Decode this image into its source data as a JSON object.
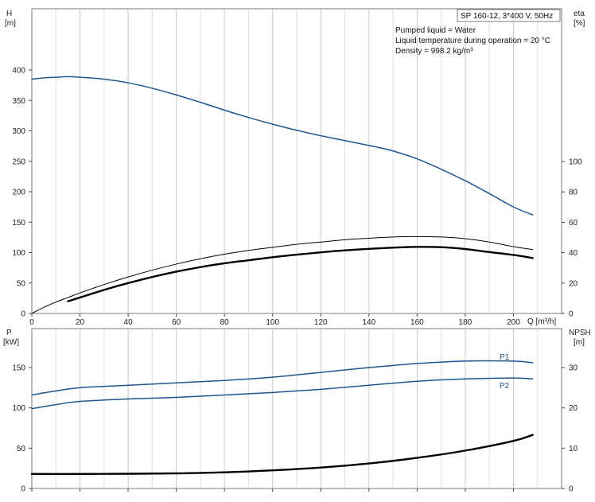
{
  "colors": {
    "blue_curve": "#1f5591",
    "black_curve": "#000000",
    "grid": "#c8c8c8",
    "frame": "#7a7a7a"
  },
  "chart_data": [
    {
      "type": "line",
      "panel": "head-efficiency",
      "title": "SP 160-12, 3*400 V, 50Hz",
      "annotations": [
        "Pumped liquid = Water",
        "Liquid temperature during operation = 20 °C",
        "Density = 998.2 kg/m³"
      ],
      "xlabel": "Q [m³/h]",
      "xlim": [
        0,
        220
      ],
      "xticks": [
        0,
        20,
        40,
        60,
        80,
        100,
        120,
        140,
        160,
        180,
        200
      ],
      "y_left": {
        "label_line1": "H",
        "label_line2": "[m]",
        "ylim": [
          0,
          400
        ],
        "ticks": [
          0,
          50,
          100,
          150,
          200,
          250,
          300,
          350,
          400
        ]
      },
      "y_right": {
        "label_line1": "eta",
        "label_line2": "[%]",
        "ylim": [
          0,
          100
        ],
        "ticks": [
          0,
          20,
          40,
          60,
          80,
          100
        ]
      },
      "grid": "vertical",
      "series": [
        {
          "id": "head",
          "axis": "left",
          "color": "blue",
          "x": [
            0,
            5,
            10,
            15,
            20,
            30,
            40,
            50,
            60,
            70,
            80,
            90,
            100,
            110,
            120,
            130,
            140,
            150,
            160,
            170,
            180,
            190,
            200,
            208
          ],
          "y": [
            385,
            387,
            388,
            389,
            388,
            385,
            379,
            370,
            359,
            347,
            334,
            322,
            311,
            301,
            292,
            284,
            276,
            267,
            254,
            237,
            218,
            197,
            175,
            162
          ]
        },
        {
          "id": "eta-thin",
          "axis": "right",
          "color": "black",
          "weight": "thin",
          "x": [
            0,
            5,
            10,
            15,
            20,
            30,
            40,
            50,
            60,
            70,
            80,
            90,
            100,
            110,
            120,
            130,
            140,
            150,
            160,
            170,
            180,
            190,
            200,
            208
          ],
          "y": [
            0,
            4,
            7.5,
            10.5,
            13.5,
            19,
            24,
            28.5,
            32.5,
            36,
            39,
            41.5,
            43.5,
            45.5,
            47,
            48.5,
            49.5,
            50.3,
            50.6,
            50.3,
            49.2,
            47,
            44,
            42
          ]
        },
        {
          "id": "eta-bold",
          "axis": "right",
          "color": "black",
          "weight": "bold",
          "x": [
            15,
            20,
            30,
            40,
            50,
            60,
            70,
            80,
            90,
            100,
            110,
            120,
            130,
            140,
            150,
            160,
            170,
            180,
            190,
            200,
            208
          ],
          "y": [
            8,
            10.5,
            15.5,
            20,
            24,
            27.5,
            30.5,
            33,
            35,
            37,
            38.7,
            40.2,
            41.5,
            42.5,
            43.3,
            43.8,
            43.6,
            42.4,
            40.4,
            38.5,
            36.5
          ]
        }
      ]
    },
    {
      "type": "line",
      "panel": "power-npsh",
      "xlim": [
        0,
        220
      ],
      "xticks": [
        0,
        20,
        40,
        60,
        80,
        100,
        120,
        140,
        160,
        180,
        200
      ],
      "y_left": {
        "label_line1": "P",
        "label_line2": "[kW]",
        "ylim": [
          0,
          150
        ],
        "ticks": [
          0,
          50,
          100,
          150
        ]
      },
      "y_right": {
        "label_line1": "NPSH",
        "label_line2": "[m]",
        "ylim": [
          0,
          30
        ],
        "ticks": [
          0,
          10,
          20,
          30
        ]
      },
      "grid": "vertical",
      "series": [
        {
          "id": "P1",
          "name": "P1",
          "axis": "left",
          "color": "blue",
          "x": [
            0,
            10,
            20,
            40,
            60,
            80,
            100,
            120,
            140,
            160,
            180,
            200,
            208
          ],
          "y": [
            116,
            121,
            125,
            128,
            131,
            134,
            138,
            144,
            150,
            155,
            158,
            158,
            156
          ]
        },
        {
          "id": "P2",
          "name": "P2",
          "axis": "left",
          "color": "blue",
          "x": [
            0,
            10,
            20,
            40,
            60,
            80,
            100,
            120,
            140,
            160,
            180,
            200,
            208
          ],
          "y": [
            99,
            104,
            108,
            111,
            113,
            116,
            119,
            123,
            128,
            133,
            136,
            137,
            136
          ]
        },
        {
          "id": "npsh",
          "axis": "right",
          "color": "black",
          "weight": "bold",
          "x": [
            0,
            20,
            40,
            60,
            80,
            100,
            120,
            140,
            160,
            180,
            200,
            208
          ],
          "y": [
            3.6,
            3.6,
            3.65,
            3.75,
            4.0,
            4.5,
            5.2,
            6.2,
            7.6,
            9.4,
            11.8,
            13.3
          ]
        }
      ]
    }
  ]
}
